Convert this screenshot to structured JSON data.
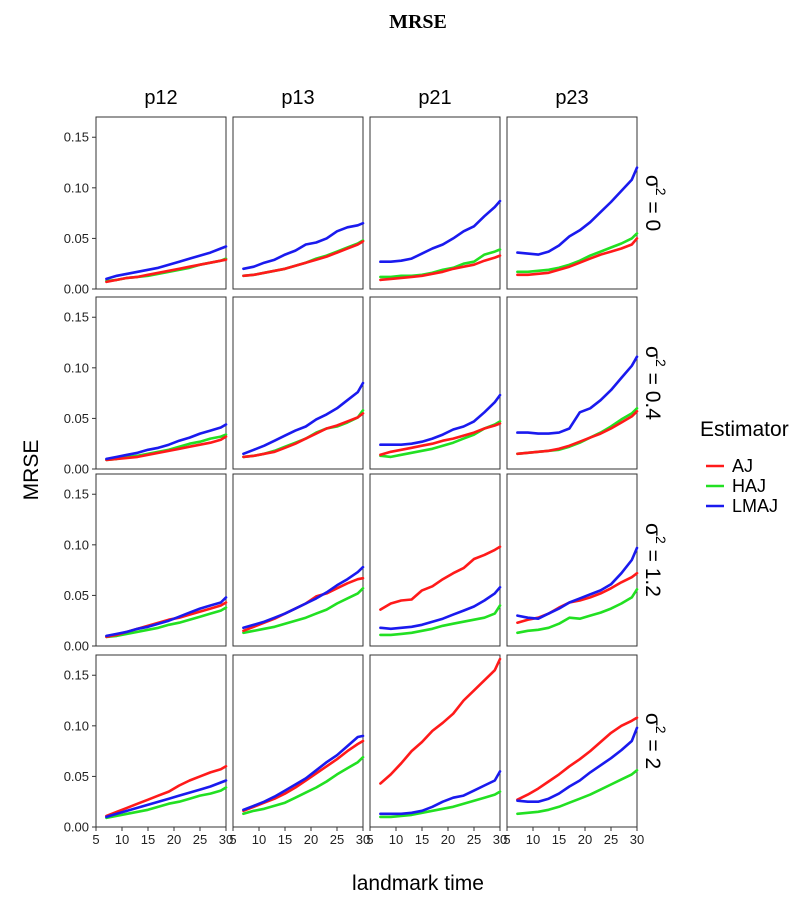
{
  "chart_data": {
    "type": "line",
    "title": "MRSE",
    "xlabel": "landmark time",
    "ylabel": "MRSE",
    "xlim": [
      5,
      30
    ],
    "ylim": [
      0,
      0.17
    ],
    "x_ticks": [
      "5",
      "10",
      "15",
      "20",
      "25",
      "30"
    ],
    "y_ticks": [
      "0.00",
      "0.05",
      "0.10",
      "0.15"
    ],
    "x": [
      7,
      9,
      11,
      13,
      15,
      17,
      19,
      21,
      23,
      25,
      27,
      29,
      30
    ],
    "columns": [
      "p12",
      "p13",
      "p21",
      "p23"
    ],
    "rows": [
      {
        "label_base": "σ",
        "label_sup": "2",
        "label_rest": " = 0"
      },
      {
        "label_base": "σ",
        "label_sup": "2",
        "label_rest": " = 0.4"
      },
      {
        "label_base": "σ",
        "label_sup": "2",
        "label_rest": " = 1.2"
      },
      {
        "label_base": "σ",
        "label_sup": "2",
        "label_rest": " = 2"
      }
    ],
    "legend": {
      "title": "Estimator",
      "position": "right",
      "entries": [
        {
          "name": "AJ",
          "color": "#ff1a1a"
        },
        {
          "name": "HAJ",
          "color": "#22e022"
        },
        {
          "name": "LMAJ",
          "color": "#1a1aee"
        }
      ]
    },
    "grid": false,
    "panels": [
      [
        {
          "AJ": [
            0.007,
            0.009,
            0.011,
            0.012,
            0.014,
            0.016,
            0.018,
            0.02,
            0.022,
            0.024,
            0.026,
            0.028,
            0.029
          ],
          "HAJ": [
            0.008,
            0.009,
            0.011,
            0.012,
            0.013,
            0.015,
            0.017,
            0.019,
            0.021,
            0.024,
            0.026,
            0.028,
            0.03
          ],
          "LMAJ": [
            0.01,
            0.013,
            0.015,
            0.017,
            0.019,
            0.021,
            0.024,
            0.027,
            0.03,
            0.033,
            0.036,
            0.04,
            0.042
          ]
        },
        {
          "AJ": [
            0.013,
            0.014,
            0.016,
            0.018,
            0.02,
            0.023,
            0.026,
            0.029,
            0.032,
            0.036,
            0.04,
            0.044,
            0.047
          ],
          "HAJ": [
            0.013,
            0.014,
            0.016,
            0.018,
            0.02,
            0.023,
            0.026,
            0.03,
            0.033,
            0.037,
            0.041,
            0.045,
            0.048
          ],
          "LMAJ": [
            0.02,
            0.022,
            0.026,
            0.029,
            0.034,
            0.038,
            0.044,
            0.046,
            0.05,
            0.057,
            0.061,
            0.063,
            0.065
          ]
        },
        {
          "AJ": [
            0.009,
            0.01,
            0.011,
            0.012,
            0.013,
            0.015,
            0.017,
            0.02,
            0.022,
            0.024,
            0.028,
            0.031,
            0.033
          ],
          "HAJ": [
            0.012,
            0.012,
            0.013,
            0.013,
            0.014,
            0.016,
            0.019,
            0.021,
            0.025,
            0.027,
            0.034,
            0.037,
            0.039
          ],
          "LMAJ": [
            0.027,
            0.027,
            0.028,
            0.03,
            0.035,
            0.04,
            0.044,
            0.05,
            0.057,
            0.062,
            0.072,
            0.081,
            0.087
          ]
        },
        {
          "AJ": [
            0.014,
            0.014,
            0.015,
            0.016,
            0.019,
            0.022,
            0.026,
            0.03,
            0.034,
            0.037,
            0.04,
            0.044,
            0.05
          ],
          "HAJ": [
            0.017,
            0.017,
            0.018,
            0.019,
            0.021,
            0.024,
            0.028,
            0.033,
            0.037,
            0.041,
            0.045,
            0.05,
            0.055
          ],
          "LMAJ": [
            0.036,
            0.035,
            0.034,
            0.037,
            0.043,
            0.052,
            0.058,
            0.066,
            0.076,
            0.086,
            0.097,
            0.108,
            0.12
          ]
        }
      ],
      [
        {
          "AJ": [
            0.009,
            0.01,
            0.011,
            0.012,
            0.014,
            0.016,
            0.018,
            0.02,
            0.022,
            0.024,
            0.026,
            0.029,
            0.032
          ],
          "HAJ": [
            0.009,
            0.01,
            0.012,
            0.013,
            0.015,
            0.017,
            0.019,
            0.022,
            0.025,
            0.027,
            0.03,
            0.032,
            0.034
          ],
          "LMAJ": [
            0.01,
            0.012,
            0.014,
            0.016,
            0.019,
            0.021,
            0.024,
            0.028,
            0.031,
            0.035,
            0.038,
            0.041,
            0.044
          ]
        },
        {
          "AJ": [
            0.012,
            0.013,
            0.015,
            0.017,
            0.021,
            0.025,
            0.03,
            0.035,
            0.04,
            0.043,
            0.047,
            0.051,
            0.055
          ],
          "HAJ": [
            0.012,
            0.013,
            0.015,
            0.018,
            0.022,
            0.026,
            0.03,
            0.036,
            0.04,
            0.042,
            0.046,
            0.051,
            0.058
          ],
          "LMAJ": [
            0.015,
            0.019,
            0.023,
            0.028,
            0.033,
            0.038,
            0.042,
            0.049,
            0.054,
            0.06,
            0.068,
            0.076,
            0.085
          ]
        },
        {
          "AJ": [
            0.014,
            0.017,
            0.019,
            0.021,
            0.023,
            0.025,
            0.028,
            0.03,
            0.033,
            0.036,
            0.04,
            0.043,
            0.045
          ],
          "HAJ": [
            0.013,
            0.012,
            0.014,
            0.016,
            0.018,
            0.02,
            0.023,
            0.026,
            0.03,
            0.034,
            0.04,
            0.044,
            0.047
          ],
          "LMAJ": [
            0.024,
            0.024,
            0.024,
            0.025,
            0.027,
            0.03,
            0.034,
            0.039,
            0.042,
            0.047,
            0.056,
            0.066,
            0.073
          ]
        },
        {
          "AJ": [
            0.015,
            0.016,
            0.017,
            0.018,
            0.02,
            0.023,
            0.027,
            0.031,
            0.035,
            0.04,
            0.046,
            0.052,
            0.057
          ],
          "HAJ": [
            0.015,
            0.016,
            0.017,
            0.018,
            0.019,
            0.022,
            0.026,
            0.031,
            0.036,
            0.042,
            0.049,
            0.055,
            0.06
          ],
          "LMAJ": [
            0.036,
            0.036,
            0.035,
            0.035,
            0.036,
            0.04,
            0.056,
            0.06,
            0.068,
            0.078,
            0.09,
            0.102,
            0.111
          ]
        }
      ],
      [
        {
          "AJ": [
            0.009,
            0.011,
            0.014,
            0.017,
            0.02,
            0.023,
            0.026,
            0.028,
            0.031,
            0.034,
            0.037,
            0.04,
            0.043
          ],
          "HAJ": [
            0.009,
            0.01,
            0.012,
            0.014,
            0.016,
            0.018,
            0.021,
            0.023,
            0.026,
            0.029,
            0.032,
            0.035,
            0.038
          ],
          "LMAJ": [
            0.01,
            0.012,
            0.014,
            0.017,
            0.019,
            0.022,
            0.025,
            0.029,
            0.033,
            0.037,
            0.04,
            0.043,
            0.048
          ]
        },
        {
          "AJ": [
            0.015,
            0.019,
            0.023,
            0.027,
            0.032,
            0.037,
            0.042,
            0.049,
            0.052,
            0.057,
            0.062,
            0.066,
            0.067
          ],
          "HAJ": [
            0.013,
            0.015,
            0.017,
            0.019,
            0.022,
            0.025,
            0.028,
            0.032,
            0.036,
            0.042,
            0.047,
            0.052,
            0.057
          ],
          "LMAJ": [
            0.018,
            0.021,
            0.024,
            0.028,
            0.032,
            0.037,
            0.042,
            0.047,
            0.053,
            0.06,
            0.066,
            0.073,
            0.078
          ]
        },
        {
          "AJ": [
            0.036,
            0.042,
            0.045,
            0.046,
            0.055,
            0.059,
            0.066,
            0.072,
            0.077,
            0.086,
            0.09,
            0.095,
            0.098
          ],
          "HAJ": [
            0.011,
            0.011,
            0.012,
            0.013,
            0.015,
            0.017,
            0.02,
            0.022,
            0.024,
            0.026,
            0.028,
            0.032,
            0.04
          ],
          "LMAJ": [
            0.018,
            0.017,
            0.018,
            0.019,
            0.021,
            0.024,
            0.027,
            0.031,
            0.035,
            0.039,
            0.045,
            0.052,
            0.058
          ]
        },
        {
          "AJ": [
            0.023,
            0.026,
            0.028,
            0.032,
            0.038,
            0.043,
            0.045,
            0.048,
            0.052,
            0.057,
            0.063,
            0.068,
            0.072
          ],
          "HAJ": [
            0.013,
            0.015,
            0.016,
            0.018,
            0.022,
            0.028,
            0.027,
            0.03,
            0.033,
            0.037,
            0.042,
            0.048,
            0.056
          ],
          "LMAJ": [
            0.03,
            0.028,
            0.027,
            0.032,
            0.037,
            0.043,
            0.047,
            0.051,
            0.055,
            0.061,
            0.072,
            0.085,
            0.097
          ]
        }
      ],
      [
        {
          "AJ": [
            0.011,
            0.015,
            0.019,
            0.023,
            0.027,
            0.031,
            0.035,
            0.041,
            0.046,
            0.05,
            0.054,
            0.057,
            0.06
          ],
          "HAJ": [
            0.009,
            0.011,
            0.013,
            0.015,
            0.017,
            0.02,
            0.023,
            0.025,
            0.028,
            0.031,
            0.033,
            0.036,
            0.039
          ],
          "LMAJ": [
            0.01,
            0.013,
            0.016,
            0.019,
            0.022,
            0.025,
            0.028,
            0.031,
            0.034,
            0.037,
            0.04,
            0.044,
            0.046
          ]
        },
        {
          "AJ": [
            0.016,
            0.02,
            0.024,
            0.028,
            0.033,
            0.039,
            0.046,
            0.053,
            0.06,
            0.067,
            0.075,
            0.082,
            0.085
          ],
          "HAJ": [
            0.013,
            0.016,
            0.018,
            0.021,
            0.024,
            0.029,
            0.034,
            0.039,
            0.045,
            0.052,
            0.058,
            0.064,
            0.069
          ],
          "LMAJ": [
            0.017,
            0.021,
            0.025,
            0.03,
            0.036,
            0.042,
            0.048,
            0.056,
            0.064,
            0.071,
            0.08,
            0.089,
            0.09
          ]
        },
        {
          "AJ": [
            0.043,
            0.052,
            0.063,
            0.075,
            0.084,
            0.095,
            0.103,
            0.112,
            0.125,
            0.135,
            0.145,
            0.155,
            0.166
          ],
          "HAJ": [
            0.01,
            0.01,
            0.011,
            0.012,
            0.014,
            0.016,
            0.018,
            0.02,
            0.023,
            0.026,
            0.029,
            0.032,
            0.035
          ],
          "LMAJ": [
            0.013,
            0.013,
            0.013,
            0.014,
            0.016,
            0.02,
            0.025,
            0.029,
            0.031,
            0.036,
            0.041,
            0.046,
            0.055
          ]
        },
        {
          "AJ": [
            0.027,
            0.032,
            0.038,
            0.045,
            0.052,
            0.06,
            0.067,
            0.075,
            0.084,
            0.093,
            0.1,
            0.105,
            0.108
          ],
          "HAJ": [
            0.013,
            0.014,
            0.015,
            0.017,
            0.02,
            0.024,
            0.028,
            0.032,
            0.037,
            0.042,
            0.047,
            0.052,
            0.056
          ],
          "LMAJ": [
            0.026,
            0.025,
            0.025,
            0.028,
            0.033,
            0.04,
            0.046,
            0.054,
            0.061,
            0.068,
            0.076,
            0.085,
            0.098
          ]
        }
      ]
    ]
  }
}
